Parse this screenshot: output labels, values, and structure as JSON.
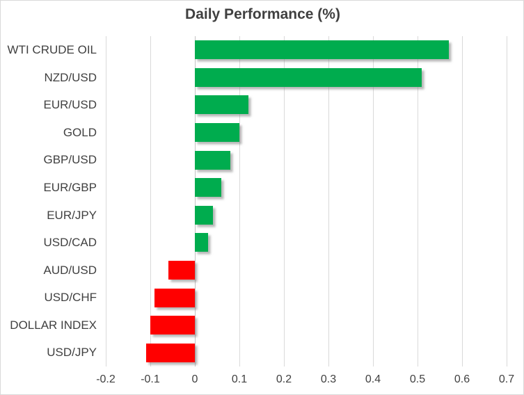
{
  "chart_data": {
    "type": "bar",
    "orientation": "horizontal",
    "title": "Daily Performance (%)",
    "categories": [
      "WTI CRUDE OIL",
      "NZD/USD",
      "EUR/USD",
      "GOLD",
      "GBP/USD",
      "EUR/GBP",
      "EUR/JPY",
      "USD/CAD",
      "AUD/USD",
      "USD/CHF",
      "DOLLAR INDEX",
      "USD/JPY"
    ],
    "values": [
      0.57,
      0.51,
      0.12,
      0.1,
      0.08,
      0.06,
      0.04,
      0.03,
      -0.06,
      -0.09,
      -0.1,
      -0.11
    ],
    "xlabel": "",
    "ylabel": "",
    "xlim": [
      -0.2,
      0.7
    ],
    "xticks": [
      -0.2,
      -0.1,
      0,
      0.1,
      0.2,
      0.3,
      0.4,
      0.5,
      0.6,
      0.7
    ],
    "xtick_labels": [
      "-0.2",
      "-0.1",
      "0",
      "0.1",
      "0.2",
      "0.3",
      "0.4",
      "0.5",
      "0.6",
      "0.7"
    ],
    "grid": true,
    "legend": false,
    "colors": {
      "positive": "#00AC4E",
      "negative": "#FF0000",
      "text": "#404040",
      "gridline": "#D9D9D9",
      "zero_axis": "#C3C3C3",
      "background": "#FFFFFF",
      "border": "#D9D9D9"
    }
  }
}
